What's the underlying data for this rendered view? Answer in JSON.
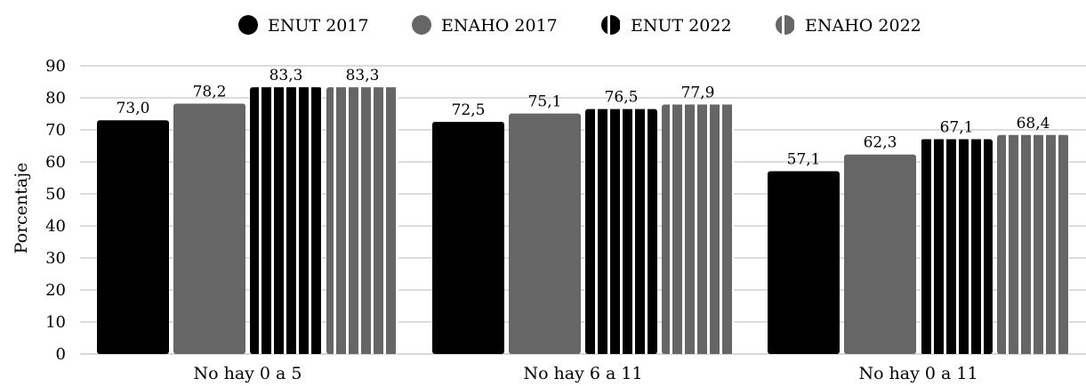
{
  "chart_data": {
    "type": "bar",
    "title": "",
    "xlabel": "",
    "ylabel": "Porcentaje",
    "ylim": [
      0,
      90
    ],
    "yticks": [
      0,
      10,
      20,
      30,
      40,
      50,
      60,
      70,
      80,
      90
    ],
    "grid": true,
    "legend_position": "top",
    "categories": [
      "No hay 0 a 5",
      "No hay 6 a 11",
      "No hay 0 a 11"
    ],
    "series": [
      {
        "name": "ENUT 2017",
        "values": [
          73.0,
          72.5,
          57.1
        ],
        "labels": [
          "73,0",
          "72,5",
          "57,1"
        ],
        "color": "#000000",
        "pattern": "solid"
      },
      {
        "name": "ENAHO 2017",
        "values": [
          78.2,
          75.1,
          62.3
        ],
        "labels": [
          "78,2",
          "75,1",
          "62,3"
        ],
        "color": "#666666",
        "pattern": "solid"
      },
      {
        "name": "ENUT 2022",
        "values": [
          83.3,
          76.5,
          67.1
        ],
        "labels": [
          "83,3",
          "76,5",
          "67,1"
        ],
        "color": "#000000",
        "pattern": "vertical-stripes"
      },
      {
        "name": "ENAHO 2022",
        "values": [
          83.3,
          77.9,
          68.4
        ],
        "labels": [
          "83,3",
          "77,9",
          "68,4"
        ],
        "color": "#666666",
        "pattern": "vertical-stripes"
      }
    ]
  }
}
